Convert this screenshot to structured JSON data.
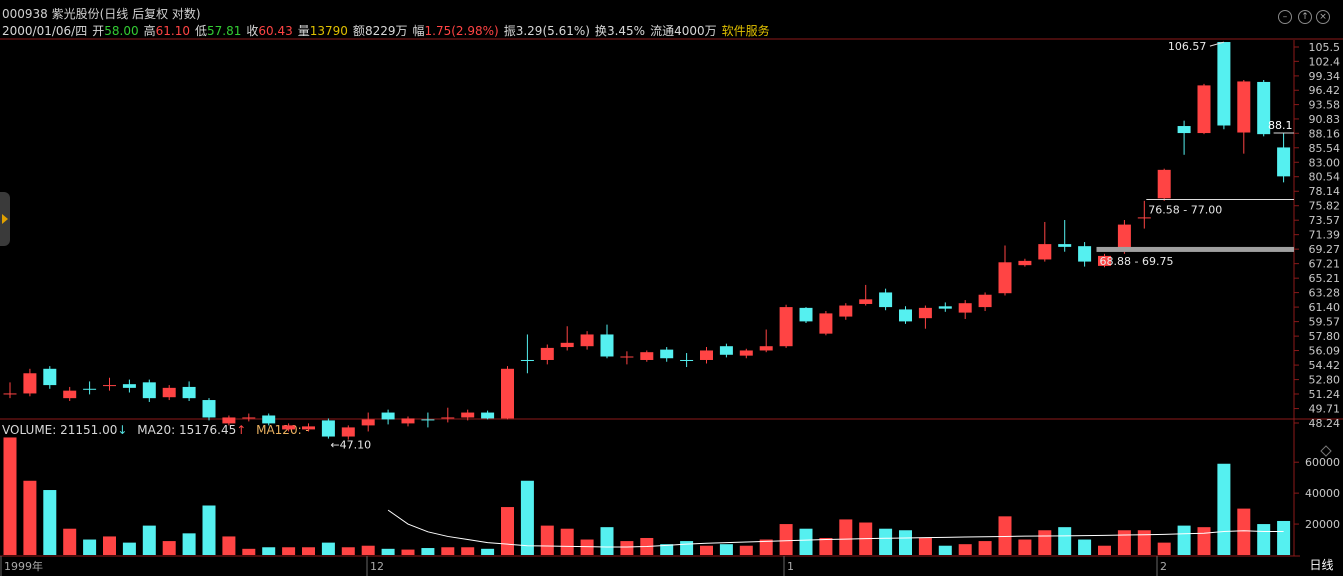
{
  "header": {
    "title": "000938 紫光股份(日线 后复权 对数)",
    "date": "2000/01/06/四",
    "open_label": "开",
    "open": "58.00",
    "high_label": "高",
    "high": "61.10",
    "low_label": "低",
    "low": "57.81",
    "close_label": "收",
    "close": "60.43",
    "vol_label": "量",
    "vol": "13790",
    "amount_label": "额",
    "amount": "8229万",
    "change_label": "幅",
    "change": "1.75(2.98%)",
    "amplitude_label": "振",
    "amplitude": "3.29(5.61%)",
    "turnover_label": "换",
    "turnover": "3.45%",
    "float_label": "流通",
    "float": "4000万",
    "sector": "软件服务"
  },
  "price_axis_ticks": [
    "105.5",
    "102.4",
    "99.34",
    "96.42",
    "93.58",
    "90.83",
    "88.16",
    "85.54",
    "83.00",
    "80.54",
    "78.14",
    "75.82",
    "73.57",
    "71.39",
    "69.27",
    "67.21",
    "65.21",
    "63.28",
    "61.40",
    "59.57",
    "57.80",
    "56.09",
    "54.42",
    "52.80",
    "51.24",
    "49.71",
    "48.24"
  ],
  "annotations": {
    "high_marker": "106.57",
    "low_marker": "47.10",
    "current_price_label": "88.1",
    "zone_upper": "76.58 - 77.00",
    "zone_lower": "68.88 - 69.75"
  },
  "volume_header": {
    "volume_label": "VOLUME: 21151.00",
    "ma20_label": "MA20: 15176.45",
    "ma120_label": "MA120: -"
  },
  "volume_axis_ticks": [
    "60000",
    "40000",
    "20000"
  ],
  "time_axis": [
    "1999年",
    "12",
    "1",
    "2"
  ],
  "period_button": "日线",
  "colors": {
    "up": "#ff4444",
    "down": "#55f0f0",
    "ma": "#ffffff",
    "grid": "#8b1a1a"
  },
  "chart_data": {
    "type": "candlestick",
    "title": "000938 紫光股份(日线 后复权 对数)",
    "candles": [
      {
        "o": 51.3,
        "c": 51.3,
        "h": 52.5,
        "l": 50.8,
        "up": true
      },
      {
        "o": 51.3,
        "c": 53.5,
        "h": 54.0,
        "l": 51.0,
        "up": true
      },
      {
        "o": 54.0,
        "c": 52.2,
        "h": 54.3,
        "l": 51.8,
        "up": false
      },
      {
        "o": 50.8,
        "c": 51.6,
        "h": 52.0,
        "l": 50.5,
        "up": true
      },
      {
        "o": 51.8,
        "c": 51.8,
        "h": 52.6,
        "l": 51.2,
        "up": false
      },
      {
        "o": 52.2,
        "c": 52.2,
        "h": 53.0,
        "l": 51.6,
        "up": true
      },
      {
        "o": 52.3,
        "c": 51.9,
        "h": 52.8,
        "l": 51.4,
        "up": false
      },
      {
        "o": 52.5,
        "c": 50.8,
        "h": 52.8,
        "l": 50.4,
        "up": false
      },
      {
        "o": 50.9,
        "c": 51.9,
        "h": 52.2,
        "l": 50.6,
        "up": true
      },
      {
        "o": 52.0,
        "c": 50.8,
        "h": 52.6,
        "l": 50.5,
        "up": false
      },
      {
        "o": 50.6,
        "c": 48.8,
        "h": 50.8,
        "l": 48.5,
        "up": false
      },
      {
        "o": 48.2,
        "c": 48.8,
        "h": 49.0,
        "l": 48.0,
        "up": true
      },
      {
        "o": 48.8,
        "c": 48.8,
        "h": 49.2,
        "l": 48.4,
        "up": true
      },
      {
        "o": 49.0,
        "c": 48.2,
        "h": 49.2,
        "l": 48.0,
        "up": false
      },
      {
        "o": 48.0,
        "c": 47.6,
        "h": 48.2,
        "l": 47.4,
        "up": true
      },
      {
        "o": 47.6,
        "c": 47.9,
        "h": 48.2,
        "l": 47.4,
        "up": true
      },
      {
        "o": 48.5,
        "c": 46.9,
        "h": 48.7,
        "l": 46.7,
        "up": false
      },
      {
        "o": 47.8,
        "c": 46.9,
        "h": 48.0,
        "l": 46.6,
        "up": true
      },
      {
        "o": 48.0,
        "c": 48.6,
        "h": 49.3,
        "l": 47.4,
        "up": true
      },
      {
        "o": 48.6,
        "c": 49.3,
        "h": 49.6,
        "l": 48.1,
        "up": false
      },
      {
        "o": 48.7,
        "c": 48.2,
        "h": 48.9,
        "l": 47.9,
        "up": true
      },
      {
        "o": 48.6,
        "c": 48.6,
        "h": 49.3,
        "l": 47.8,
        "up": false
      },
      {
        "o": 48.8,
        "c": 48.8,
        "h": 49.8,
        "l": 48.3,
        "up": true
      },
      {
        "o": 48.8,
        "c": 49.3,
        "h": 49.6,
        "l": 48.5,
        "up": true
      },
      {
        "o": 48.7,
        "c": 49.3,
        "h": 49.5,
        "l": 48.6,
        "up": false
      },
      {
        "o": 48.7,
        "c": 54.0,
        "h": 54.3,
        "l": 48.6,
        "up": true
      },
      {
        "o": 55.0,
        "c": 55.0,
        "h": 58.0,
        "l": 53.5,
        "up": false
      },
      {
        "o": 55.0,
        "c": 56.4,
        "h": 56.8,
        "l": 54.5,
        "up": true
      },
      {
        "o": 56.5,
        "c": 57.0,
        "h": 59.0,
        "l": 56.1,
        "up": true
      },
      {
        "o": 56.6,
        "c": 58.0,
        "h": 58.4,
        "l": 56.2,
        "up": true
      },
      {
        "o": 58.0,
        "c": 55.4,
        "h": 59.2,
        "l": 55.2,
        "up": false
      },
      {
        "o": 55.4,
        "c": 55.4,
        "h": 56.0,
        "l": 54.5,
        "up": true
      },
      {
        "o": 55.0,
        "c": 55.9,
        "h": 56.1,
        "l": 54.8,
        "up": true
      },
      {
        "o": 56.2,
        "c": 55.2,
        "h": 56.5,
        "l": 54.8,
        "up": false
      },
      {
        "o": 55.0,
        "c": 55.0,
        "h": 55.8,
        "l": 54.2,
        "up": false
      },
      {
        "o": 55.0,
        "c": 56.1,
        "h": 56.5,
        "l": 54.6,
        "up": true
      },
      {
        "o": 56.6,
        "c": 55.6,
        "h": 56.9,
        "l": 55.3,
        "up": false
      },
      {
        "o": 55.5,
        "c": 56.1,
        "h": 56.3,
        "l": 55.2,
        "up": true
      },
      {
        "o": 56.1,
        "c": 56.6,
        "h": 58.6,
        "l": 55.9,
        "up": true
      },
      {
        "o": 56.6,
        "c": 61.4,
        "h": 61.7,
        "l": 56.4,
        "up": true
      },
      {
        "o": 61.3,
        "c": 59.6,
        "h": 61.4,
        "l": 59.4,
        "up": false
      },
      {
        "o": 58.1,
        "c": 60.6,
        "h": 60.9,
        "l": 57.9,
        "up": true
      },
      {
        "o": 60.2,
        "c": 61.6,
        "h": 61.9,
        "l": 59.8,
        "up": true
      },
      {
        "o": 61.8,
        "c": 62.4,
        "h": 64.3,
        "l": 61.6,
        "up": true
      },
      {
        "o": 63.3,
        "c": 61.4,
        "h": 63.8,
        "l": 61.0,
        "up": false
      },
      {
        "o": 61.1,
        "c": 59.6,
        "h": 61.5,
        "l": 59.3,
        "up": false
      },
      {
        "o": 60.0,
        "c": 61.3,
        "h": 61.6,
        "l": 58.7,
        "up": true
      },
      {
        "o": 61.2,
        "c": 61.5,
        "h": 62.0,
        "l": 60.8,
        "up": false
      },
      {
        "o": 60.7,
        "c": 61.9,
        "h": 62.3,
        "l": 59.9,
        "up": true
      },
      {
        "o": 61.4,
        "c": 63.0,
        "h": 63.3,
        "l": 60.9,
        "up": true
      },
      {
        "o": 63.2,
        "c": 67.4,
        "h": 69.8,
        "l": 62.9,
        "up": true
      },
      {
        "o": 67.0,
        "c": 67.6,
        "h": 67.9,
        "l": 66.8,
        "up": true
      },
      {
        "o": 67.8,
        "c": 70.0,
        "h": 73.3,
        "l": 67.5,
        "up": true
      },
      {
        "o": 70.0,
        "c": 69.6,
        "h": 73.6,
        "l": 68.9,
        "up": false
      },
      {
        "o": 69.7,
        "c": 67.5,
        "h": 70.3,
        "l": 66.8,
        "up": false
      },
      {
        "o": 66.9,
        "c": 68.3,
        "h": 68.6,
        "l": 66.7,
        "up": true
      },
      {
        "o": 69.0,
        "c": 72.9,
        "h": 73.6,
        "l": 68.6,
        "up": true
      },
      {
        "o": 74.0,
        "c": 74.0,
        "h": 76.6,
        "l": 72.3,
        "up": true
      },
      {
        "o": 77.0,
        "c": 81.7,
        "h": 81.9,
        "l": 76.6,
        "up": true
      },
      {
        "o": 89.5,
        "c": 88.2,
        "h": 90.5,
        "l": 84.3,
        "up": false
      },
      {
        "o": 88.2,
        "c": 97.4,
        "h": 97.7,
        "l": 88.0,
        "up": true
      },
      {
        "o": 106.6,
        "c": 89.6,
        "h": 106.6,
        "l": 88.9,
        "up": false
      },
      {
        "o": 88.3,
        "c": 98.2,
        "h": 98.5,
        "l": 84.5,
        "up": true
      },
      {
        "o": 98.1,
        "c": 88.0,
        "h": 98.5,
        "l": 87.6,
        "up": false
      },
      {
        "o": 85.6,
        "c": 80.6,
        "h": 88.3,
        "l": 79.6,
        "up": false
      }
    ],
    "volume": [
      76000,
      48000,
      42000,
      17000,
      10000,
      12000,
      8000,
      19000,
      9000,
      14000,
      32000,
      12000,
      4000,
      5000,
      5000,
      5000,
      8000,
      5000,
      6000,
      4000,
      3500,
      4500,
      5000,
      5000,
      4000,
      31000,
      48000,
      19000,
      17000,
      10000,
      18000,
      9000,
      11000,
      7000,
      9000,
      6000,
      7000,
      6000,
      10000,
      20000,
      17000,
      11000,
      23000,
      21000,
      17000,
      16000,
      11000,
      6000,
      7000,
      9000,
      25000,
      10000,
      16000,
      18000,
      10000,
      6000,
      16000,
      16000,
      8000,
      19000,
      18000,
      59000,
      30000,
      20000,
      22000
    ],
    "ma20": [
      null,
      null,
      null,
      null,
      null,
      null,
      null,
      null,
      null,
      null,
      null,
      null,
      null,
      null,
      null,
      null,
      null,
      null,
      null,
      29000,
      20000,
      15000,
      12000,
      10000,
      8000,
      7000,
      6000,
      5800,
      5600,
      5400,
      5200,
      5200,
      5500,
      6200,
      7000,
      7600,
      8000,
      8400,
      8800,
      9200,
      9600,
      10000,
      10300,
      10600,
      10800,
      11000,
      11200,
      11400,
      11600,
      11800,
      12000,
      12200,
      12300,
      12400,
      12500,
      12700,
      12900,
      13100,
      13300,
      13700,
      14100,
      15200,
      15700,
      15176,
      15176
    ],
    "price_axis": {
      "scale": "log",
      "range": [
        47.0,
        106.6
      ]
    },
    "volume_axis": {
      "range": [
        0,
        80000
      ]
    }
  }
}
